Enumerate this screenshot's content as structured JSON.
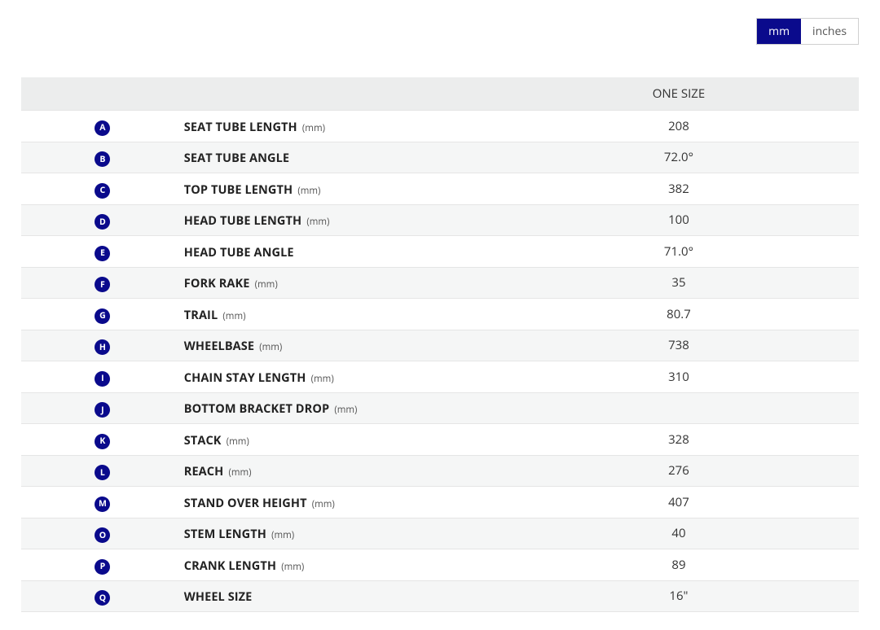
{
  "colors": {
    "brand": "#0a0a8c",
    "header_bg": "#eceded",
    "row_alt_bg": "#f5f6f6",
    "border": "#e5e5e5",
    "text": "#222222",
    "badge_text": "#ffffff"
  },
  "unit_toggle": {
    "options": [
      {
        "label": "mm",
        "active": true
      },
      {
        "label": "inches",
        "active": false
      }
    ]
  },
  "table": {
    "header": {
      "label_col": "",
      "value_col": "ONE SIZE"
    },
    "unit_suffix": "(mm)",
    "rows": [
      {
        "badge": "A",
        "label": "SEAT TUBE LENGTH",
        "show_unit": true,
        "value": "208"
      },
      {
        "badge": "B",
        "label": "SEAT TUBE ANGLE",
        "show_unit": false,
        "value": "72.0°"
      },
      {
        "badge": "C",
        "label": "TOP TUBE LENGTH",
        "show_unit": true,
        "value": "382"
      },
      {
        "badge": "D",
        "label": "HEAD TUBE LENGTH",
        "show_unit": true,
        "value": "100"
      },
      {
        "badge": "E",
        "label": "HEAD TUBE ANGLE",
        "show_unit": false,
        "value": "71.0°"
      },
      {
        "badge": "F",
        "label": "FORK RAKE",
        "show_unit": true,
        "value": "35"
      },
      {
        "badge": "G",
        "label": "TRAIL",
        "show_unit": true,
        "value": "80.7"
      },
      {
        "badge": "H",
        "label": "WHEELBASE",
        "show_unit": true,
        "value": "738"
      },
      {
        "badge": "I",
        "label": "CHAIN STAY LENGTH",
        "show_unit": true,
        "value": "310"
      },
      {
        "badge": "J",
        "label": "BOTTOM BRACKET DROP",
        "show_unit": true,
        "value": ""
      },
      {
        "badge": "K",
        "label": "STACK",
        "show_unit": true,
        "value": "328"
      },
      {
        "badge": "L",
        "label": "REACH",
        "show_unit": true,
        "value": "276"
      },
      {
        "badge": "M",
        "label": "STAND OVER HEIGHT",
        "show_unit": true,
        "value": "407"
      },
      {
        "badge": "O",
        "label": "STEM LENGTH",
        "show_unit": true,
        "value": "40"
      },
      {
        "badge": "P",
        "label": "CRANK LENGTH",
        "show_unit": true,
        "value": "89"
      },
      {
        "badge": "Q",
        "label": "WHEEL SIZE",
        "show_unit": false,
        "value": "16\""
      }
    ]
  }
}
